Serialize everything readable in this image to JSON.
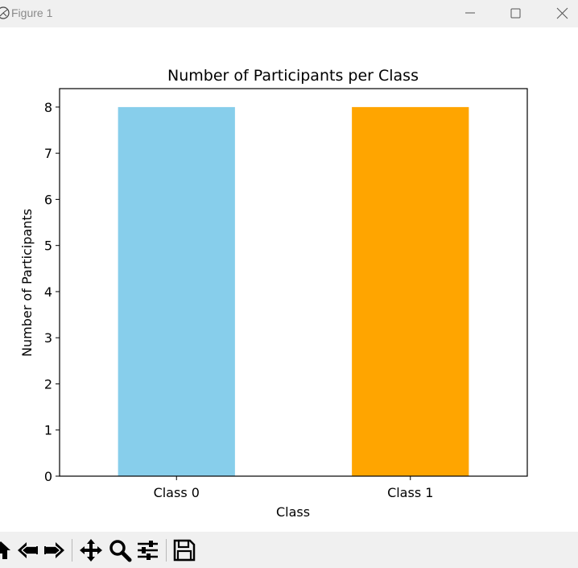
{
  "window": {
    "title": "Figure 1"
  },
  "icons": {
    "app": "matplotlib-icon",
    "minimize": "minimize-icon",
    "maximize": "maximize-icon",
    "close": "close-icon"
  },
  "toolbar": {
    "buttons": [
      "home-icon",
      "back-icon",
      "forward-icon",
      "pan-icon",
      "zoom-icon",
      "configure-subplots-icon",
      "save-icon"
    ]
  },
  "chart_data": {
    "type": "bar",
    "title": "Number of Participants per Class",
    "xlabel": "Class",
    "ylabel": "Number of Participants",
    "categories": [
      "Class 0",
      "Class 1"
    ],
    "values": [
      8,
      8
    ],
    "colors": [
      "#87ceeb",
      "#ffa500"
    ],
    "ylim": [
      0,
      8.4
    ],
    "yticks": [
      "0",
      "1",
      "2",
      "3",
      "4",
      "5",
      "6",
      "7",
      "8"
    ],
    "grid": false
  }
}
